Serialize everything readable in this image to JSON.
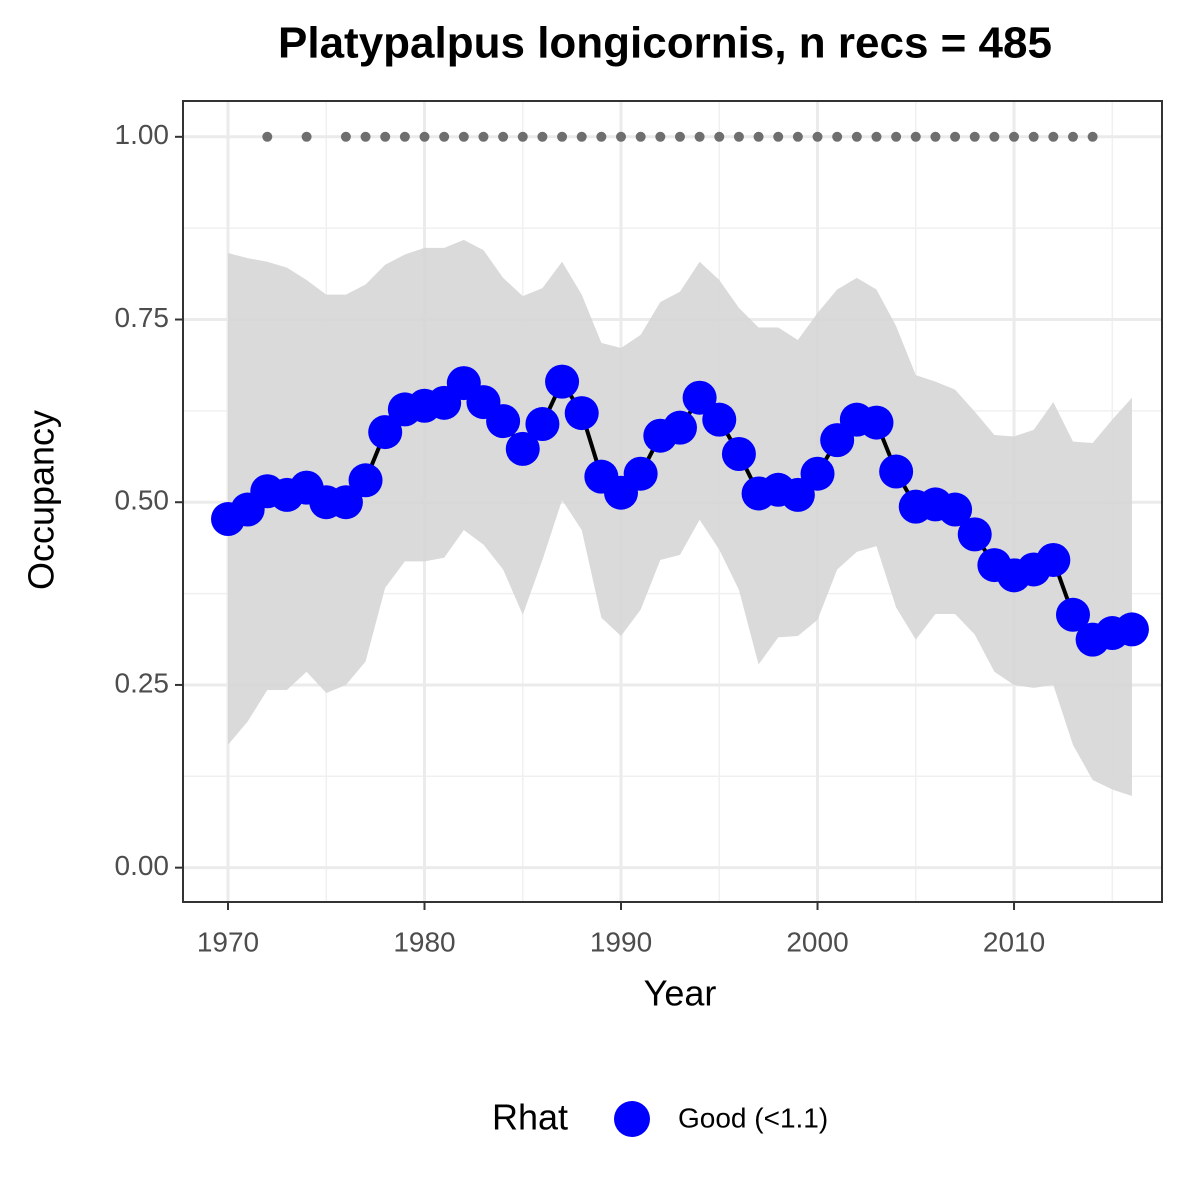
{
  "chart_data": {
    "type": "line",
    "title": "Platypalpus longicornis, n recs = 485",
    "x_label": "Year",
    "y_label": "Occupancy",
    "legend_title": "Rhat",
    "legend_position": "bottom",
    "grid": true,
    "xlim": [
      1967.71,
      2017.53
    ],
    "ylim": [
      -0.047,
      1.049
    ],
    "xticks": [
      1970,
      1980,
      1990,
      2000,
      2010
    ],
    "yticks": [
      {
        "value": 0,
        "label": "0.00"
      },
      {
        "value": 0.25,
        "label": "0.25"
      },
      {
        "value": 0.5,
        "label": "0.50"
      },
      {
        "value": 0.75,
        "label": "0.75"
      },
      {
        "value": 1,
        "label": "1.00"
      }
    ],
    "minor_xticks": [
      1975,
      1985,
      1995,
      2005,
      2015
    ],
    "minor_yticks": [
      0.125,
      0.375,
      0.625,
      0.875
    ],
    "line_color": "#000000",
    "band_color": "#d6d6d6",
    "x": [
      1970,
      1971,
      1972,
      1973,
      1974,
      1975,
      1976,
      1977,
      1978,
      1979,
      1980,
      1981,
      1982,
      1983,
      1984,
      1985,
      1986,
      1987,
      1988,
      1989,
      1990,
      1991,
      1992,
      1993,
      1994,
      1995,
      1996,
      1997,
      1998,
      1999,
      2000,
      2001,
      2002,
      2003,
      2004,
      2005,
      2006,
      2007,
      2008,
      2009,
      2010,
      2011,
      2012,
      2013,
      2014,
      2015,
      2016
    ],
    "series": [
      {
        "name": "Good (<1.1)",
        "color": "#0000ff",
        "values": [
          0.477,
          0.49,
          0.515,
          0.51,
          0.52,
          0.5,
          0.5,
          0.53,
          0.596,
          0.627,
          0.632,
          0.636,
          0.663,
          0.637,
          0.611,
          0.573,
          0.607,
          0.665,
          0.622,
          0.535,
          0.513,
          0.539,
          0.591,
          0.602,
          0.643,
          0.613,
          0.566,
          0.512,
          0.517,
          0.51,
          0.539,
          0.585,
          0.613,
          0.609,
          0.542,
          0.494,
          0.497,
          0.49,
          0.456,
          0.414,
          0.4,
          0.408,
          0.421,
          0.346,
          0.312,
          0.321,
          0.326
        ]
      }
    ],
    "upper": [
      0.841,
      0.834,
      0.829,
      0.821,
      0.804,
      0.784,
      0.784,
      0.798,
      0.825,
      0.839,
      0.848,
      0.848,
      0.859,
      0.845,
      0.807,
      0.782,
      0.793,
      0.829,
      0.784,
      0.718,
      0.711,
      0.729,
      0.774,
      0.788,
      0.829,
      0.804,
      0.766,
      0.739,
      0.739,
      0.722,
      0.759,
      0.791,
      0.807,
      0.791,
      0.741,
      0.674,
      0.665,
      0.654,
      0.624,
      0.592,
      0.59,
      0.599,
      0.637,
      0.583,
      0.581,
      0.613,
      0.643
    ],
    "lower": [
      0.168,
      0.2,
      0.243,
      0.243,
      0.268,
      0.239,
      0.25,
      0.282,
      0.383,
      0.419,
      0.419,
      0.424,
      0.462,
      0.442,
      0.408,
      0.346,
      0.421,
      0.503,
      0.462,
      0.342,
      0.317,
      0.353,
      0.421,
      0.428,
      0.476,
      0.435,
      0.38,
      0.278,
      0.315,
      0.317,
      0.339,
      0.408,
      0.432,
      0.44,
      0.356,
      0.312,
      0.347,
      0.347,
      0.319,
      0.268,
      0.25,
      0.246,
      0.25,
      0.168,
      0.12,
      0.107,
      0.098
    ],
    "records": {
      "color": "#6e6e6e",
      "x": [
        1972,
        1974,
        1976,
        1977,
        1978,
        1979,
        1980,
        1981,
        1982,
        1983,
        1984,
        1985,
        1986,
        1987,
        1988,
        1989,
        1990,
        1991,
        1992,
        1993,
        1994,
        1995,
        1996,
        1997,
        1998,
        1999,
        2000,
        2001,
        2002,
        2003,
        2004,
        2005,
        2006,
        2007,
        2008,
        2009,
        2010,
        2011,
        2012,
        2013,
        2014
      ],
      "values": [
        1,
        1,
        1,
        1,
        1,
        1,
        1,
        1,
        1,
        1,
        1,
        1,
        1,
        1,
        1,
        1,
        1,
        1,
        1,
        1,
        1,
        1,
        1,
        1,
        1,
        1,
        1,
        1,
        1,
        1,
        1,
        1,
        1,
        1,
        1,
        1,
        1,
        1,
        1,
        1,
        1
      ]
    }
  }
}
